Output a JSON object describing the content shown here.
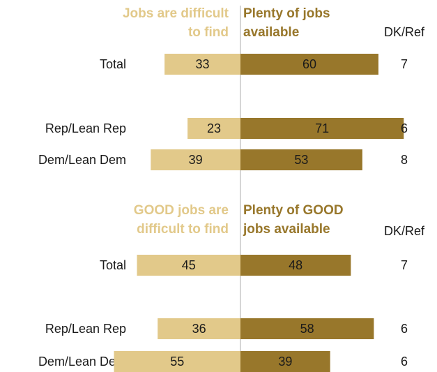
{
  "colors": {
    "negative_bar": "#e2c98a",
    "positive_bar": "#98772b",
    "divider": "#c8c8c8",
    "text": "#1a1a1a"
  },
  "chart_data": [
    {
      "type": "bar",
      "orientation": "horizontal-diverging",
      "header_negative": [
        "Jobs are difficult",
        "to find"
      ],
      "header_positive": [
        "Plenty of jobs",
        "available"
      ],
      "header_other": "DK/Ref",
      "categories": [
        "Total",
        "Rep/Lean Rep",
        "Dem/Lean Dem"
      ],
      "series": [
        {
          "name": "Jobs are difficult to find",
          "values": [
            33,
            23,
            39
          ]
        },
        {
          "name": "Plenty of jobs available",
          "values": [
            60,
            71,
            53
          ]
        },
        {
          "name": "DK/Ref",
          "values": [
            7,
            6,
            8
          ]
        }
      ]
    },
    {
      "type": "bar",
      "orientation": "horizontal-diverging",
      "header_negative": [
        "GOOD jobs are",
        "difficult to find"
      ],
      "header_positive": [
        "Plenty of GOOD",
        "jobs available"
      ],
      "header_other": "DK/Ref",
      "categories": [
        "Total",
        "Rep/Lean Rep",
        "Dem/Lean Dem"
      ],
      "series": [
        {
          "name": "GOOD jobs are difficult to find",
          "values": [
            45,
            36,
            55
          ]
        },
        {
          "name": "Plenty of GOOD jobs available",
          "values": [
            48,
            58,
            39
          ]
        },
        {
          "name": "DK/Ref",
          "values": [
            7,
            6,
            6
          ]
        }
      ]
    }
  ]
}
